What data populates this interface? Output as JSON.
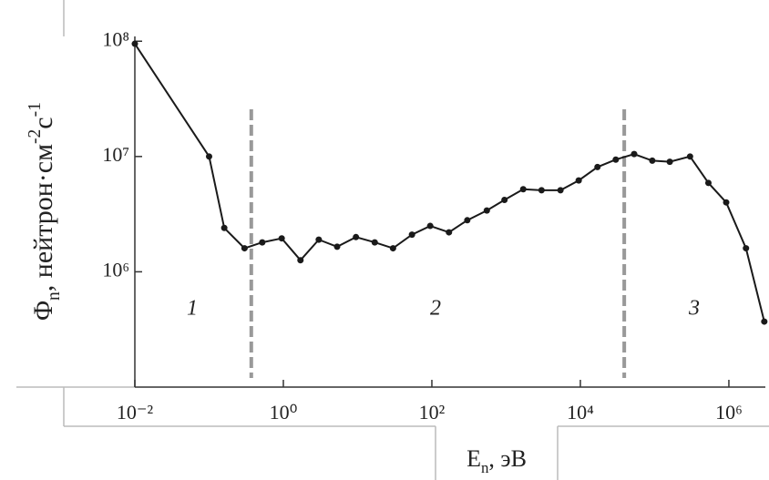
{
  "chart_data": {
    "type": "line",
    "ylabel_parts": [
      "Φ",
      "n",
      ", нейтрон·см",
      "-2",
      "с",
      "-1"
    ],
    "xlabel_parts": [
      "E",
      "n",
      ", эВ"
    ],
    "x": [
      0.01,
      0.1,
      0.16,
      0.3,
      0.52,
      0.95,
      1.7,
      3,
      5.3,
      9.5,
      17,
      30,
      54,
      95,
      170,
      300,
      550,
      950,
      1700,
      3000,
      5400,
      9500,
      17000,
      30000,
      53000,
      93000,
      160000,
      300000,
      530000,
      920000,
      1700000,
      3000000
    ],
    "series": [
      {
        "color": "#1a1a1a",
        "values": [
          95000000,
          10000000,
          2400000,
          1600000,
          1800000,
          1950000,
          1260000,
          1900000,
          1650000,
          2000000,
          1800000,
          1600000,
          2100000,
          2500000,
          2200000,
          2800000,
          3400000,
          4200000,
          5200000,
          5100000,
          5100000,
          6200000,
          8100000,
          9400000,
          10500000,
          9200000,
          9000000,
          10000000,
          5900000,
          4000000,
          1600000,
          370000
        ]
      }
    ],
    "dividers": [
      0.37,
      39000
    ],
    "region_labels": [
      "1",
      "2",
      "3"
    ],
    "xlog": true,
    "ylog": true,
    "xlim": [
      0.01,
      3100000
    ],
    "ylim": [
      100000,
      110000000
    ],
    "xticks": [
      {
        "value": 0.01,
        "label": "10⁻²"
      },
      {
        "value": 1,
        "label": "10⁰"
      },
      {
        "value": 100,
        "label": "10²"
      },
      {
        "value": 10000,
        "label": "10⁴"
      },
      {
        "value": 1000000,
        "label": "10⁶"
      }
    ],
    "yticks": [
      {
        "value": 1000000,
        "label": "10⁶"
      },
      {
        "value": 10000000,
        "label": "10⁷"
      },
      {
        "value": 100000000,
        "label": "10⁸"
      }
    ]
  }
}
